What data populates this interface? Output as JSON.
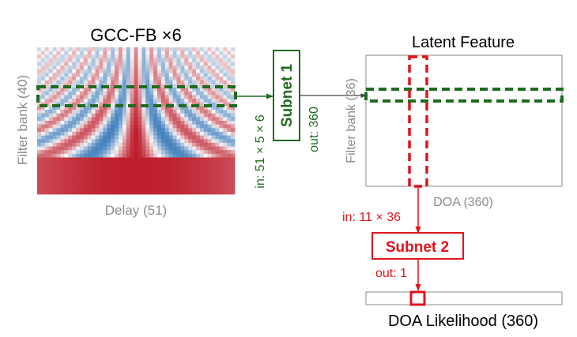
{
  "gcc": {
    "title": "GCC-FB ×6",
    "ylabel": "Filter bank (40)",
    "xlabel": "Delay (51)"
  },
  "subnet1": {
    "label": "Subnet 1",
    "input": "in: 51 × 5 × 6",
    "output": "out: 360"
  },
  "latent": {
    "title": "Latent Feature",
    "ylabel": "Filter bank (36)",
    "xlabel": "DOA (360)"
  },
  "subnet2": {
    "label": "Subnet 2",
    "input": "in: 11 × 36",
    "output": "out: 1"
  },
  "likelihood": {
    "label": "DOA Likelihood (360)"
  },
  "colors": {
    "green": "#1e6b1e",
    "red": "#e0141b",
    "gray_text": "#8c8c8c",
    "box_border": "#888888",
    "arrow_gray": "#444444"
  }
}
